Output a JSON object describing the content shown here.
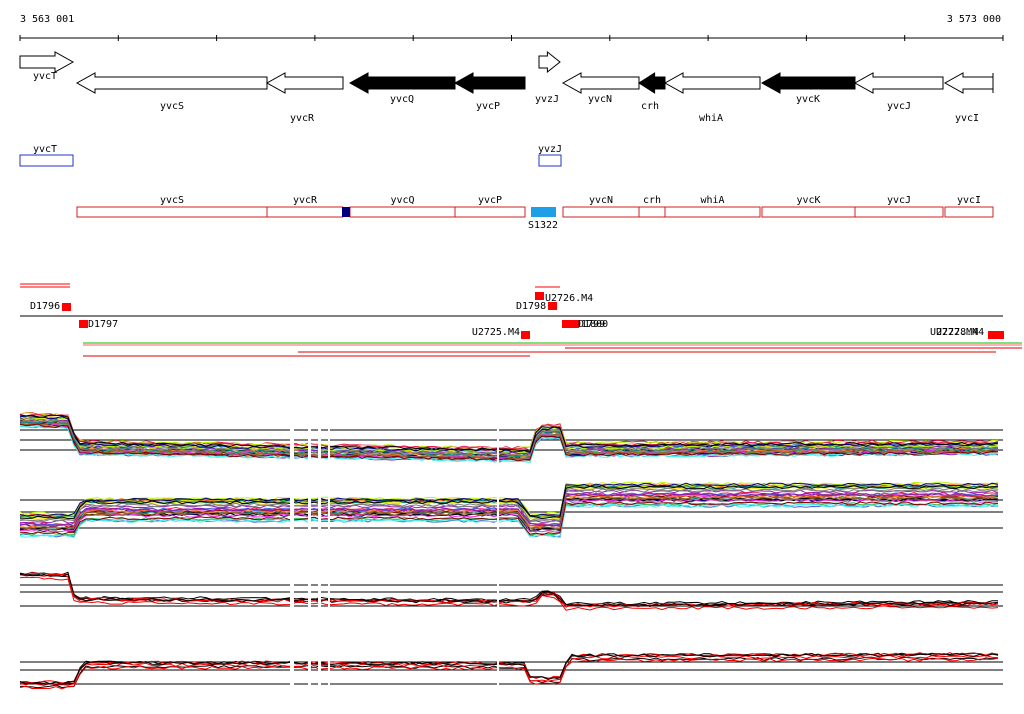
{
  "ruler": {
    "start": "3 563 001",
    "end": "3 573 000"
  },
  "genes": [
    "yvcT",
    "yvcS",
    "yvcR",
    "yvcQ",
    "yvcP",
    "yvzJ",
    "yvcN",
    "crh",
    "whiA",
    "yvcK",
    "yvcJ",
    "yvcI"
  ],
  "blue_boxes": [
    "yvcT",
    "yvzJ"
  ],
  "red_boxes": [
    "yvcS",
    "yvcR",
    "yvcQ",
    "yvcP",
    "yvcN",
    "crh",
    "whiA",
    "yvcK",
    "yvcJ",
    "yvcI"
  ],
  "feature": "S1322",
  "terminators": [
    "D1796",
    "D1797",
    "U2725.M4",
    "D1798",
    "U2726.M4",
    "D1799",
    "D1800",
    "U2727.M4",
    "U2728.M4"
  ]
}
